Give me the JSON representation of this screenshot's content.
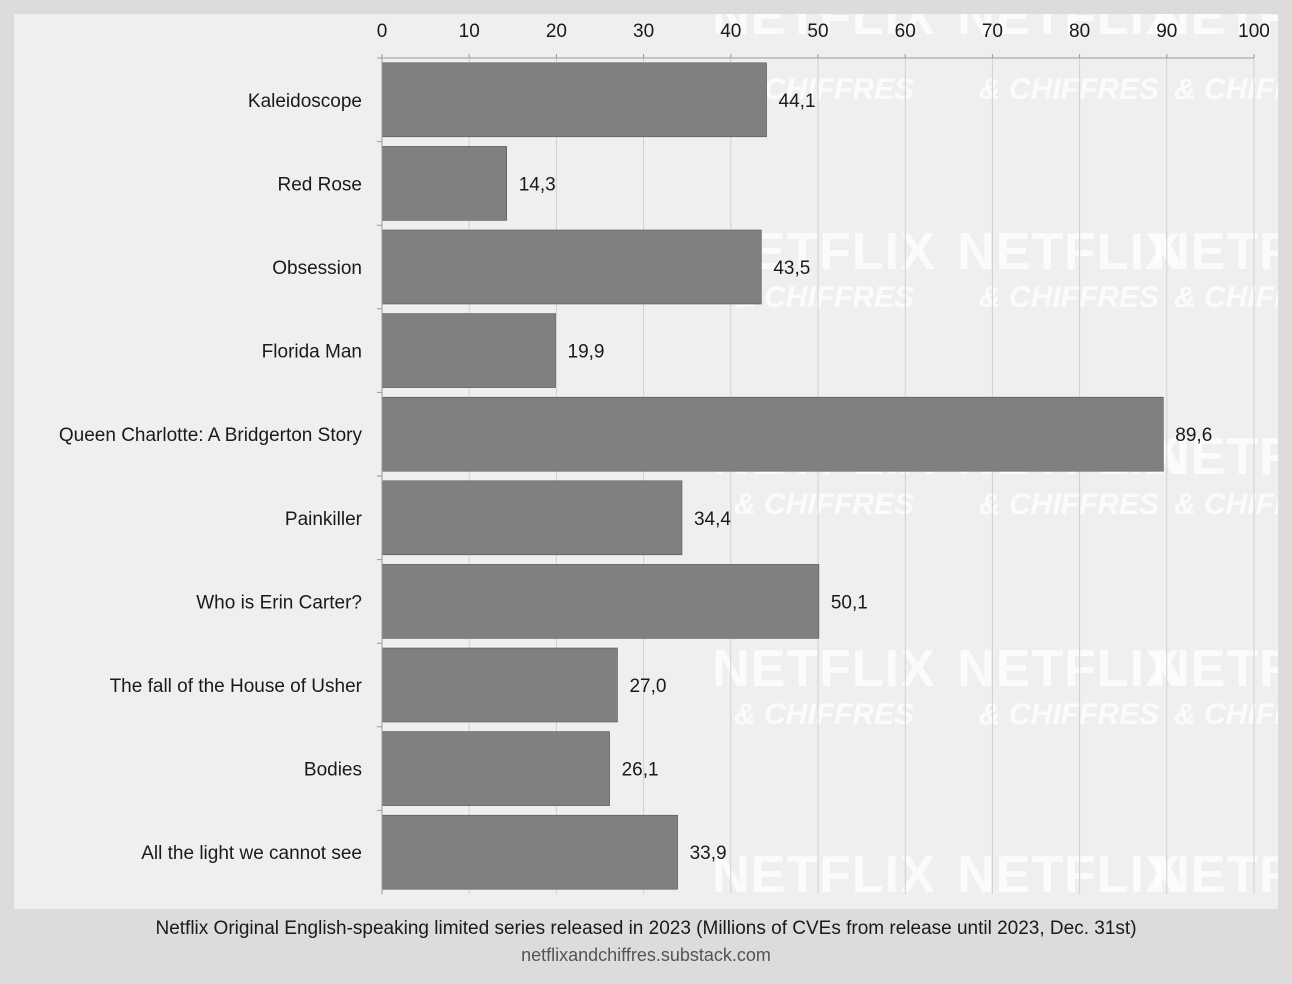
{
  "chart_data": {
    "type": "bar",
    "orientation": "horizontal",
    "categories": [
      "Kaleidoscope",
      "Red Rose",
      "Obsession",
      "Florida Man",
      "Queen Charlotte: A Bridgerton Story",
      "Painkiller",
      "Who is Erin Carter?",
      "The fall of the House of Usher",
      "Bodies",
      "All the light we cannot see"
    ],
    "values": [
      44.1,
      14.3,
      43.5,
      19.9,
      89.6,
      34.4,
      50.1,
      27.0,
      26.1,
      33.9
    ],
    "value_labels": [
      "44,1",
      "14,3",
      "43,5",
      "19,9",
      "89,6",
      "34,4",
      "50,1",
      "27,0",
      "26,1",
      "33,9"
    ],
    "xlim": [
      0,
      100
    ],
    "xticks": [
      0,
      10,
      20,
      30,
      40,
      50,
      60,
      70,
      80,
      90,
      100
    ],
    "x_axis_position": "top",
    "grid": true,
    "bar_color": "#808080",
    "title": "Netflix Original English-speaking limited series released in 2023 (Millions of CVEs from release until 2023, Dec. 31st)",
    "source": "netflixandchiffres.substack.com"
  },
  "watermark": {
    "line1": "NETFLIX",
    "line2": "& CHIFFRES"
  },
  "colors": {
    "background": "#dcdcdc",
    "panel": "#efefef",
    "bar": "#808080",
    "grid": "#d0d0d0"
  }
}
